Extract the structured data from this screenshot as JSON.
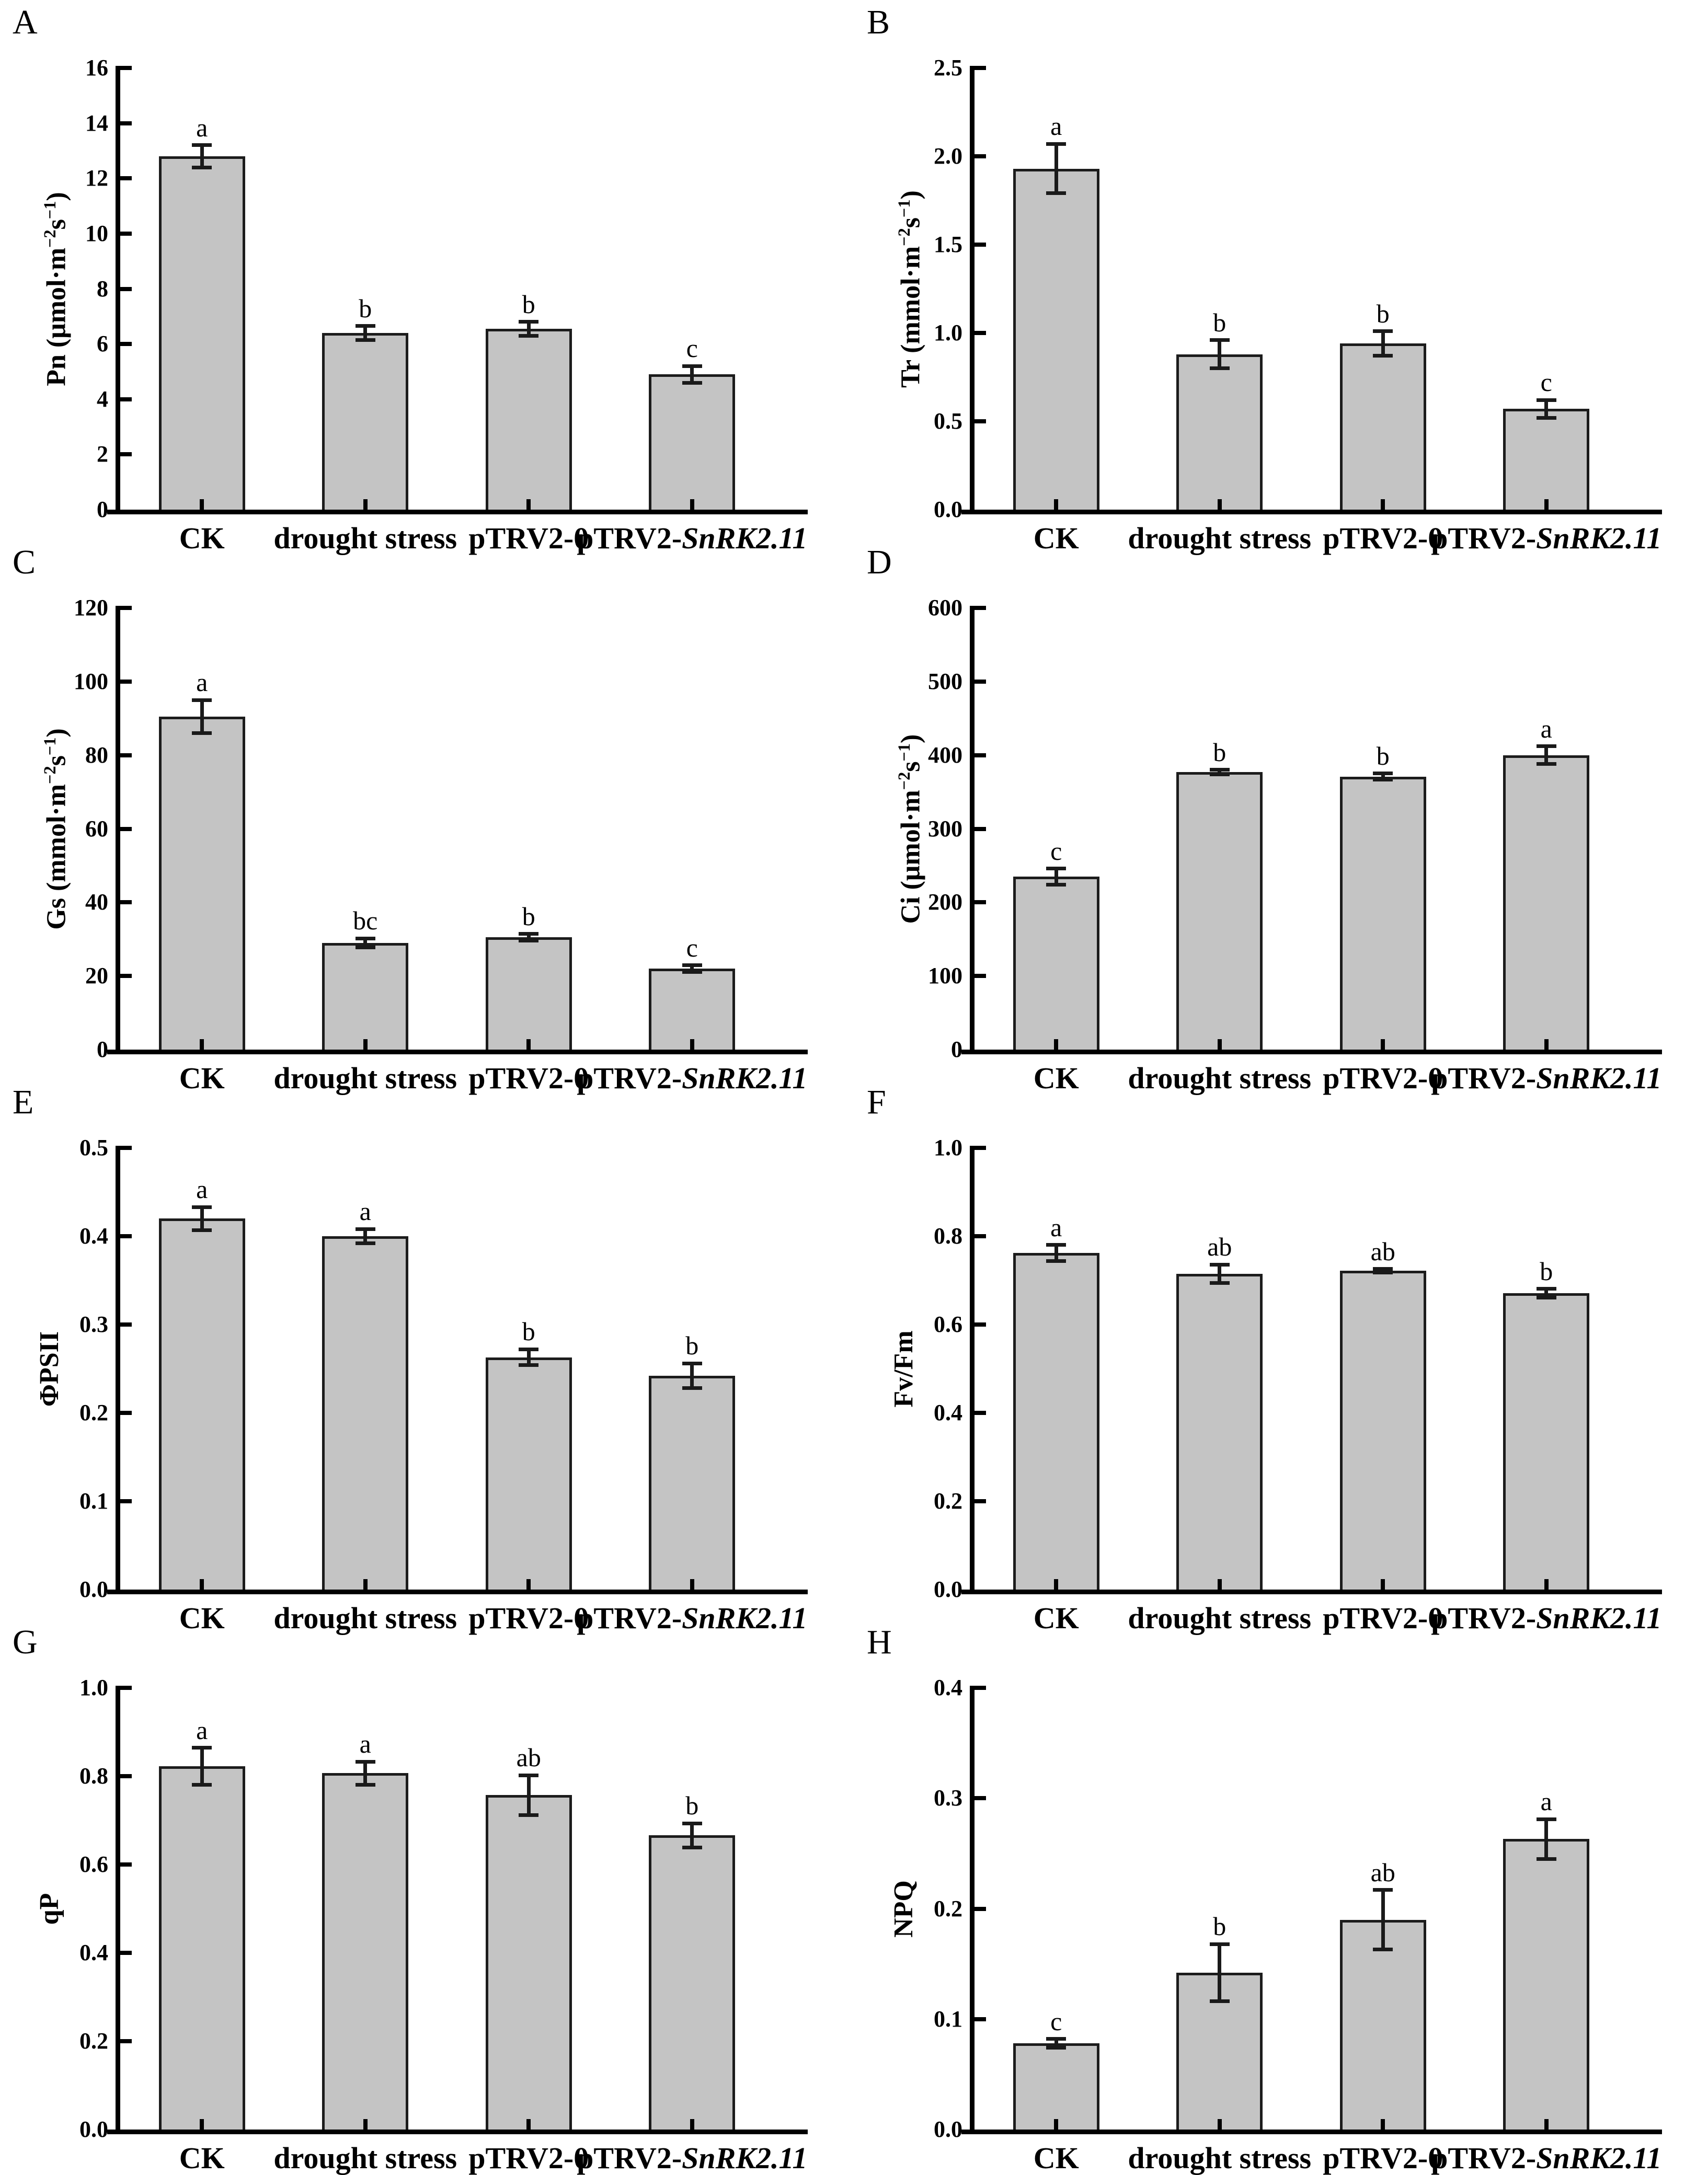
{
  "figure": {
    "background": "#ffffff",
    "bar_fill": "#c4c4c4",
    "bar_border": "#1c1c1c",
    "axis_color": "#000000",
    "text_color": "#000000"
  },
  "categories": [
    "CK",
    "drought stress",
    "pTRV2-0",
    "pTRV2-SnRK2.11"
  ],
  "categories_rich": [
    [
      {
        "t": "CK"
      }
    ],
    [
      {
        "t": "drought stress"
      }
    ],
    [
      {
        "t": "pTRV2-0"
      }
    ],
    [
      {
        "t": "pTRV2-"
      },
      {
        "t": "SnRK2.11",
        "i": true
      }
    ]
  ],
  "chart_data": [
    {
      "panel": "A",
      "type": "bar",
      "ylabel": "Pn (μmol·m−2s−1)",
      "ylabel_parts": [
        {
          "t": "Pn (μmol·m"
        },
        {
          "t": "−2",
          "sup": true
        },
        {
          "t": "s"
        },
        {
          "t": "−1",
          "sup": true
        },
        {
          "t": ")"
        }
      ],
      "xlabel": "",
      "ylim": [
        0,
        16
      ],
      "ymax": 16,
      "yticks": [
        "0",
        "2",
        "4",
        "6",
        "8",
        "10",
        "12",
        "14",
        "16"
      ],
      "categories": [
        "CK",
        "drought stress",
        "pTRV2-0",
        "pTRV2-SnRK2.11"
      ],
      "values": [
        12.8,
        6.4,
        6.55,
        4.9
      ],
      "errors": [
        0.4,
        0.25,
        0.25,
        0.3
      ],
      "sig_letters": [
        "a",
        "b",
        "b",
        "c"
      ]
    },
    {
      "panel": "B",
      "type": "bar",
      "ylabel": "Tr (mmol·m−2s−1)",
      "ylabel_parts": [
        {
          "t": "Tr (mmol·m"
        },
        {
          "t": "−2",
          "sup": true
        },
        {
          "t": "s"
        },
        {
          "t": "−1",
          "sup": true
        },
        {
          "t": ")"
        }
      ],
      "xlabel": "",
      "ylim": [
        0,
        2.5
      ],
      "ymax": 2.5,
      "yticks": [
        "0.0",
        "0.5",
        "1.0",
        "1.5",
        "2.0",
        "2.5"
      ],
      "categories": [
        "CK",
        "drought stress",
        "pTRV2-0",
        "pTRV2-SnRK2.11"
      ],
      "values": [
        1.93,
        0.88,
        0.94,
        0.57
      ],
      "errors": [
        0.14,
        0.08,
        0.07,
        0.05
      ],
      "sig_letters": [
        "a",
        "b",
        "b",
        "c"
      ]
    },
    {
      "panel": "C",
      "type": "bar",
      "ylabel": "Gs (mmol·m−2s−1)",
      "ylabel_parts": [
        {
          "t": "Gs (mmol·m"
        },
        {
          "t": "−2",
          "sup": true
        },
        {
          "t": "s"
        },
        {
          "t": "−1",
          "sup": true
        },
        {
          "t": ")"
        }
      ],
      "xlabel": "",
      "ylim": [
        0,
        120
      ],
      "ymax": 120,
      "yticks": [
        "0",
        "20",
        "40",
        "60",
        "80",
        "100",
        "120"
      ],
      "categories": [
        "CK",
        "drought stress",
        "pTRV2-0",
        "pTRV2-SnRK2.11"
      ],
      "values": [
        90.5,
        29,
        30.5,
        22
      ],
      "errors": [
        4.5,
        1.2,
        0.9,
        0.9
      ],
      "sig_letters": [
        "a",
        "bc",
        "b",
        "c"
      ]
    },
    {
      "panel": "D",
      "type": "bar",
      "ylabel": "Ci (μmol·m−2s−1)",
      "ylabel_parts": [
        {
          "t": "Ci (μmol·m"
        },
        {
          "t": "−2",
          "sup": true
        },
        {
          "t": "s"
        },
        {
          "t": "−1",
          "sup": true
        },
        {
          "t": ")"
        }
      ],
      "xlabel": "",
      "ylim": [
        0,
        600
      ],
      "ymax": 600,
      "yticks": [
        "0",
        "100",
        "200",
        "300",
        "400",
        "500",
        "600"
      ],
      "categories": [
        "CK",
        "drought stress",
        "pTRV2-0",
        "pTRV2-SnRK2.11"
      ],
      "values": [
        235,
        377,
        371,
        400
      ],
      "errors": [
        11,
        3,
        4,
        12
      ],
      "sig_letters": [
        "c",
        "b",
        "b",
        "a"
      ]
    },
    {
      "panel": "E",
      "type": "bar",
      "ylabel": "ΦPSII",
      "ylabel_parts": [
        {
          "t": "ΦPSII"
        }
      ],
      "xlabel": "",
      "ylim": [
        0,
        0.5
      ],
      "ymax": 0.5,
      "yticks": [
        "0.0",
        "0.1",
        "0.2",
        "0.3",
        "0.4",
        "0.5"
      ],
      "categories": [
        "CK",
        "drought stress",
        "pTRV2-0",
        "pTRV2-SnRK2.11"
      ],
      "values": [
        0.42,
        0.4,
        0.263,
        0.242
      ],
      "errors": [
        0.013,
        0.008,
        0.009,
        0.014
      ],
      "sig_letters": [
        "a",
        "a",
        "b",
        "b"
      ]
    },
    {
      "panel": "F",
      "type": "bar",
      "ylabel": "Fv/Fm",
      "ylabel_parts": [
        {
          "t": "Fv/Fm"
        }
      ],
      "xlabel": "",
      "ylim": [
        0,
        1.0
      ],
      "ymax": 1.0,
      "yticks": [
        "0.0",
        "0.2",
        "0.4",
        "0.6",
        "0.8",
        "1.0"
      ],
      "categories": [
        "CK",
        "drought stress",
        "pTRV2-0",
        "pTRV2-SnRK2.11"
      ],
      "values": [
        0.762,
        0.715,
        0.722,
        0.671
      ],
      "errors": [
        0.018,
        0.021,
        0.004,
        0.01
      ],
      "sig_letters": [
        "a",
        "ab",
        "ab",
        "b"
      ]
    },
    {
      "panel": "G",
      "type": "bar",
      "ylabel": "qP",
      "ylabel_parts": [
        {
          "t": "qP"
        }
      ],
      "xlabel": "",
      "ylim": [
        0,
        1.0
      ],
      "ymax": 1.0,
      "yticks": [
        "0.0",
        "0.2",
        "0.4",
        "0.6",
        "0.8",
        "1.0"
      ],
      "categories": [
        "CK",
        "drought stress",
        "pTRV2-0",
        "pTRV2-SnRK2.11"
      ],
      "values": [
        0.822,
        0.807,
        0.757,
        0.666
      ],
      "errors": [
        0.042,
        0.026,
        0.045,
        0.027
      ],
      "sig_letters": [
        "a",
        "a",
        "ab",
        "b"
      ]
    },
    {
      "panel": "H",
      "type": "bar",
      "ylabel": "NPQ",
      "ylabel_parts": [
        {
          "t": "NPQ"
        }
      ],
      "xlabel": "",
      "ylim": [
        0,
        0.4
      ],
      "ymax": 0.4,
      "yticks": [
        "0.0",
        "0.1",
        "0.2",
        "0.3",
        "0.4"
      ],
      "categories": [
        "CK",
        "drought stress",
        "pTRV2-0",
        "pTRV2-SnRK2.11"
      ],
      "values": [
        0.078,
        0.142,
        0.19,
        0.263
      ],
      "errors": [
        0.004,
        0.026,
        0.027,
        0.018
      ],
      "sig_letters": [
        "c",
        "b",
        "ab",
        "a"
      ]
    }
  ]
}
